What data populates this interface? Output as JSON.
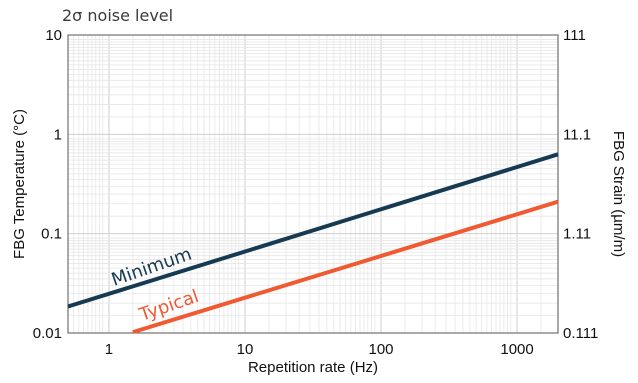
{
  "chart_data": {
    "type": "line",
    "title": "2σ noise level",
    "xlabel": "Repetition rate (Hz)",
    "ylabel": "FBG Temperature (°C)",
    "y2label": "FBG Strain (µm/m)",
    "xscale": "log",
    "yscale": "log",
    "xlim": [
      0.5,
      2000
    ],
    "ylim": [
      0.01,
      10
    ],
    "x_ticks": [
      1,
      10,
      100,
      1000
    ],
    "x_tick_labels": [
      "1",
      "10",
      "100",
      "1000"
    ],
    "y_ticks": [
      0.01,
      0.1,
      1,
      10
    ],
    "y_tick_labels": [
      "0.01",
      "0.1",
      "1",
      "10"
    ],
    "y2_tick_labels": [
      "0.111",
      "1.11",
      "11.1",
      "111"
    ],
    "grid": true,
    "series": [
      {
        "name": "Minimum",
        "color": "#173a53",
        "x": [
          0.5,
          2000
        ],
        "y": [
          0.0185,
          0.63
        ]
      },
      {
        "name": "Typical",
        "color": "#f05a32",
        "x": [
          1.5,
          2000
        ],
        "y": [
          0.0102,
          0.21
        ]
      }
    ]
  }
}
